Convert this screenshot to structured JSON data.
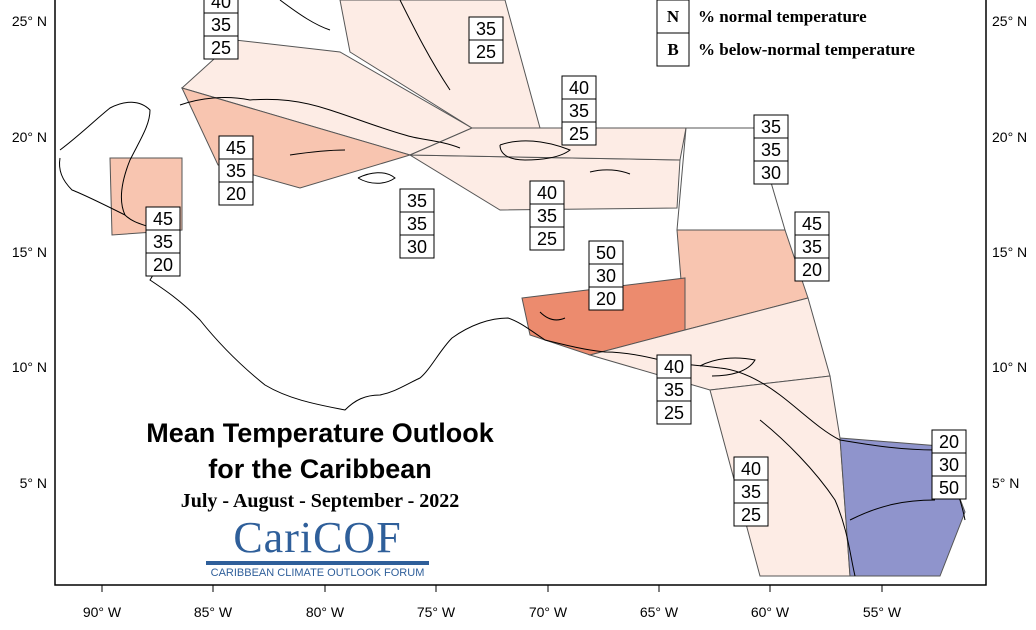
{
  "title": {
    "line1": "Mean Temperature Outlook",
    "line2": "for the Caribbean",
    "period": "July - August - September - 2022"
  },
  "logo": {
    "word": "CariCOF",
    "subtitle": "CARIBBEAN CLIMATE OUTLOOK FORUM",
    "color": "#2f5f9a"
  },
  "legend": {
    "items": [
      {
        "letter": "N",
        "text": "% normal temperature"
      },
      {
        "letter": "B",
        "text": "% below-normal temperature"
      }
    ]
  },
  "axes": {
    "lon_labels": [
      "90° W",
      "85° W",
      "80° W",
      "75° W",
      "70° W",
      "65° W",
      "60° W",
      "55° W"
    ],
    "lat_labels": [
      "25° N",
      "20° N",
      "15° N",
      "10° N",
      "5° N"
    ]
  },
  "colors": {
    "above_40": "#fdece5",
    "above_45": "#f8c5b0",
    "above_50": "#ec8b6e",
    "below_50": "#8f94cc"
  },
  "probability_boxes": [
    {
      "id": "bahamas-west",
      "values": [
        "40",
        "35",
        "25"
      ]
    },
    {
      "id": "bahamas-east",
      "values": [
        "35",
        "25"
      ]
    },
    {
      "id": "cuba",
      "values": [
        "45",
        "35",
        "20"
      ]
    },
    {
      "id": "belize",
      "values": [
        "45",
        "35",
        "20"
      ]
    },
    {
      "id": "jamaica",
      "values": [
        "35",
        "35",
        "30"
      ]
    },
    {
      "id": "hispaniola",
      "values": [
        "40",
        "35",
        "25"
      ]
    },
    {
      "id": "turks-caicos",
      "values": [
        "40",
        "35",
        "25"
      ]
    },
    {
      "id": "atlantic-east",
      "values": [
        "35",
        "35",
        "30"
      ]
    },
    {
      "id": "leeward-windward",
      "values": [
        "45",
        "35",
        "20"
      ]
    },
    {
      "id": "abc-islands",
      "values": [
        "50",
        "30",
        "20"
      ]
    },
    {
      "id": "trinidad",
      "values": [
        "40",
        "35",
        "25"
      ]
    },
    {
      "id": "guyana",
      "values": [
        "40",
        "35",
        "25"
      ]
    },
    {
      "id": "suriname-guiana",
      "values": [
        "20",
        "30",
        "50"
      ]
    }
  ]
}
